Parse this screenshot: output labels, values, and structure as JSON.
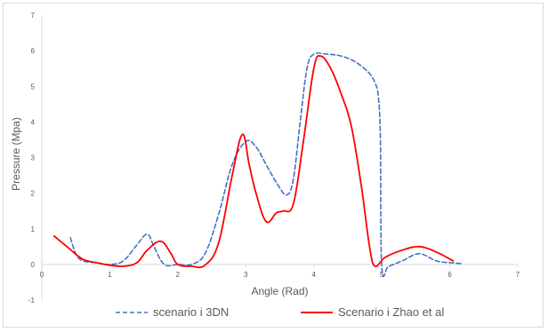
{
  "chart_data": {
    "type": "line",
    "title": "",
    "xlabel": "Angle (Rad)",
    "ylabel": "Pressure (Mpa)",
    "xlim": [
      0,
      7
    ],
    "ylim": [
      -1,
      7
    ],
    "x_ticks": [
      "0",
      "1",
      "2",
      "3",
      "4",
      "5",
      "6",
      "7"
    ],
    "y_ticks": [
      "-1",
      "0",
      "1",
      "2",
      "3",
      "4",
      "5",
      "6",
      "7"
    ],
    "grid": false,
    "legend_position": "bottom",
    "series": [
      {
        "name": "scenario i 3DN",
        "color": "#4472c4",
        "style": "dashed",
        "x": [
          0.42,
          0.5,
          0.6,
          0.8,
          1.0,
          1.2,
          1.4,
          1.55,
          1.65,
          1.8,
          2.0,
          2.2,
          2.4,
          2.6,
          2.8,
          3.0,
          3.15,
          3.3,
          3.45,
          3.6,
          3.7,
          3.8,
          3.9,
          4.0,
          4.2,
          4.4,
          4.6,
          4.8,
          4.9,
          4.95,
          4.98,
          5.0,
          5.1,
          5.3,
          5.55,
          5.8,
          6.0,
          6.2
        ],
        "y": [
          0.75,
          0.3,
          0.1,
          0.05,
          0.0,
          0.1,
          0.55,
          0.85,
          0.5,
          0.0,
          0.0,
          0.0,
          0.3,
          1.4,
          2.8,
          3.45,
          3.3,
          2.8,
          2.3,
          1.95,
          2.4,
          4.0,
          5.5,
          5.9,
          5.9,
          5.85,
          5.7,
          5.4,
          5.1,
          4.7,
          3.5,
          -0.05,
          -0.05,
          0.1,
          0.3,
          0.1,
          0.05,
          0.02
        ]
      },
      {
        "name": "Scenario i Zhao et al",
        "color": "#ff0000",
        "style": "solid",
        "x": [
          0.18,
          0.4,
          0.6,
          0.8,
          1.0,
          1.2,
          1.4,
          1.55,
          1.75,
          1.9,
          2.0,
          2.2,
          2.4,
          2.6,
          2.8,
          2.95,
          3.05,
          3.15,
          3.3,
          3.45,
          3.55,
          3.7,
          3.85,
          4.0,
          4.1,
          4.25,
          4.4,
          4.55,
          4.7,
          4.82,
          4.9,
          5.05,
          5.3,
          5.55,
          5.8,
          6.05
        ],
        "y": [
          0.8,
          0.45,
          0.15,
          0.05,
          -0.02,
          -0.05,
          0.05,
          0.4,
          0.65,
          0.3,
          0.0,
          -0.05,
          -0.02,
          0.6,
          2.5,
          3.65,
          2.8,
          2.0,
          1.2,
          1.45,
          1.5,
          1.7,
          3.5,
          5.5,
          5.85,
          5.5,
          4.8,
          3.9,
          2.2,
          0.5,
          -0.05,
          0.2,
          0.4,
          0.5,
          0.35,
          0.1
        ]
      }
    ]
  }
}
